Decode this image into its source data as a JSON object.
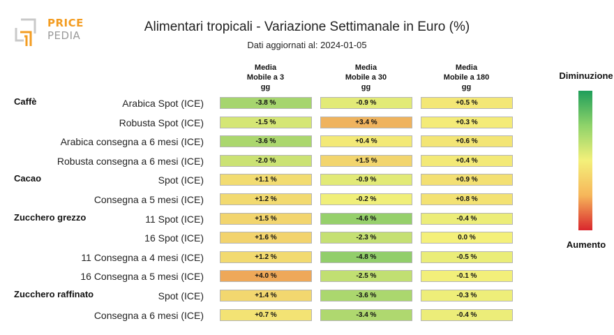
{
  "brand": {
    "line1": "PRICE",
    "line2": "PEDIA",
    "accent": "#f39c21",
    "gray": "#9a9a9a"
  },
  "chart_data": {
    "type": "heatmap",
    "title": "Alimentari tropicali - Variazione Settimanale in Euro (%)",
    "subtitle": "Dati aggiornati al: 2024-01-05",
    "columns": [
      "Media\nMobile a 3\ngg",
      "Media\nMobile a 30\ngg",
      "Media\nMobile a 180\ngg"
    ],
    "groups": [
      {
        "name": "Caffè",
        "rows": [
          {
            "label": "Arabica Spot (ICE)",
            "values": [
              -3.8,
              -0.9,
              0.5
            ],
            "texts": [
              "-3.8 %",
              "-0.9 %",
              "+0.5 %"
            ]
          },
          {
            "label": "Robusta Spot (ICE)",
            "values": [
              -1.5,
              3.4,
              0.3
            ],
            "texts": [
              "-1.5 %",
              "+3.4 %",
              "+0.3 %"
            ]
          },
          {
            "label": "Arabica consegna a 6 mesi (ICE)",
            "values": [
              -3.6,
              0.4,
              0.6
            ],
            "texts": [
              "-3.6 %",
              "+0.4 %",
              "+0.6 %"
            ]
          },
          {
            "label": "Robusta consegna a 6 mesi (ICE)",
            "values": [
              -2.0,
              1.5,
              0.4
            ],
            "texts": [
              "-2.0 %",
              "+1.5 %",
              "+0.4 %"
            ]
          }
        ]
      },
      {
        "name": "Cacao",
        "rows": [
          {
            "label": "Spot (ICE)",
            "values": [
              1.1,
              -0.9,
              0.9
            ],
            "texts": [
              "+1.1 %",
              "-0.9 %",
              "+0.9 %"
            ]
          },
          {
            "label": "Consegna a 5 mesi (ICE)",
            "values": [
              1.2,
              -0.2,
              0.8
            ],
            "texts": [
              "+1.2 %",
              "-0.2 %",
              "+0.8 %"
            ]
          }
        ]
      },
      {
        "name": "Zucchero grezzo",
        "rows": [
          {
            "label": "11 Spot (ICE)",
            "values": [
              1.5,
              -4.6,
              -0.4
            ],
            "texts": [
              "+1.5 %",
              "-4.6 %",
              "-0.4 %"
            ]
          },
          {
            "label": "16 Spot (ICE)",
            "values": [
              1.6,
              -2.3,
              0.0
            ],
            "texts": [
              "+1.6 %",
              "-2.3 %",
              "0.0 %"
            ]
          },
          {
            "label": "11 Consegna a 4 mesi (ICE)",
            "values": [
              1.2,
              -4.8,
              -0.5
            ],
            "texts": [
              "+1.2 %",
              "-4.8 %",
              "-0.5 %"
            ]
          },
          {
            "label": "16 Consegna a 5 mesi (ICE)",
            "values": [
              4.0,
              -2.5,
              -0.1
            ],
            "texts": [
              "+4.0 %",
              "-2.5 %",
              "-0.1 %"
            ]
          }
        ]
      },
      {
        "name": "Zucchero raffinato",
        "rows": [
          {
            "label": "Spot (ICE)",
            "values": [
              1.4,
              -3.6,
              -0.3
            ],
            "texts": [
              "+1.4 %",
              "-3.6 %",
              "-0.3 %"
            ]
          },
          {
            "label": "Consegna a 6 mesi (ICE)",
            "values": [
              0.7,
              -3.4,
              -0.4
            ],
            "texts": [
              "+0.7 %",
              "-3.4 %",
              "-0.4 %"
            ]
          }
        ]
      }
    ],
    "legend": {
      "top": "Diminuzione",
      "bottom": "Aumento"
    },
    "colors": {
      "decrease": "#1f9e5a",
      "neutral": "#f4f07a",
      "increase": "#d9262d"
    }
  }
}
